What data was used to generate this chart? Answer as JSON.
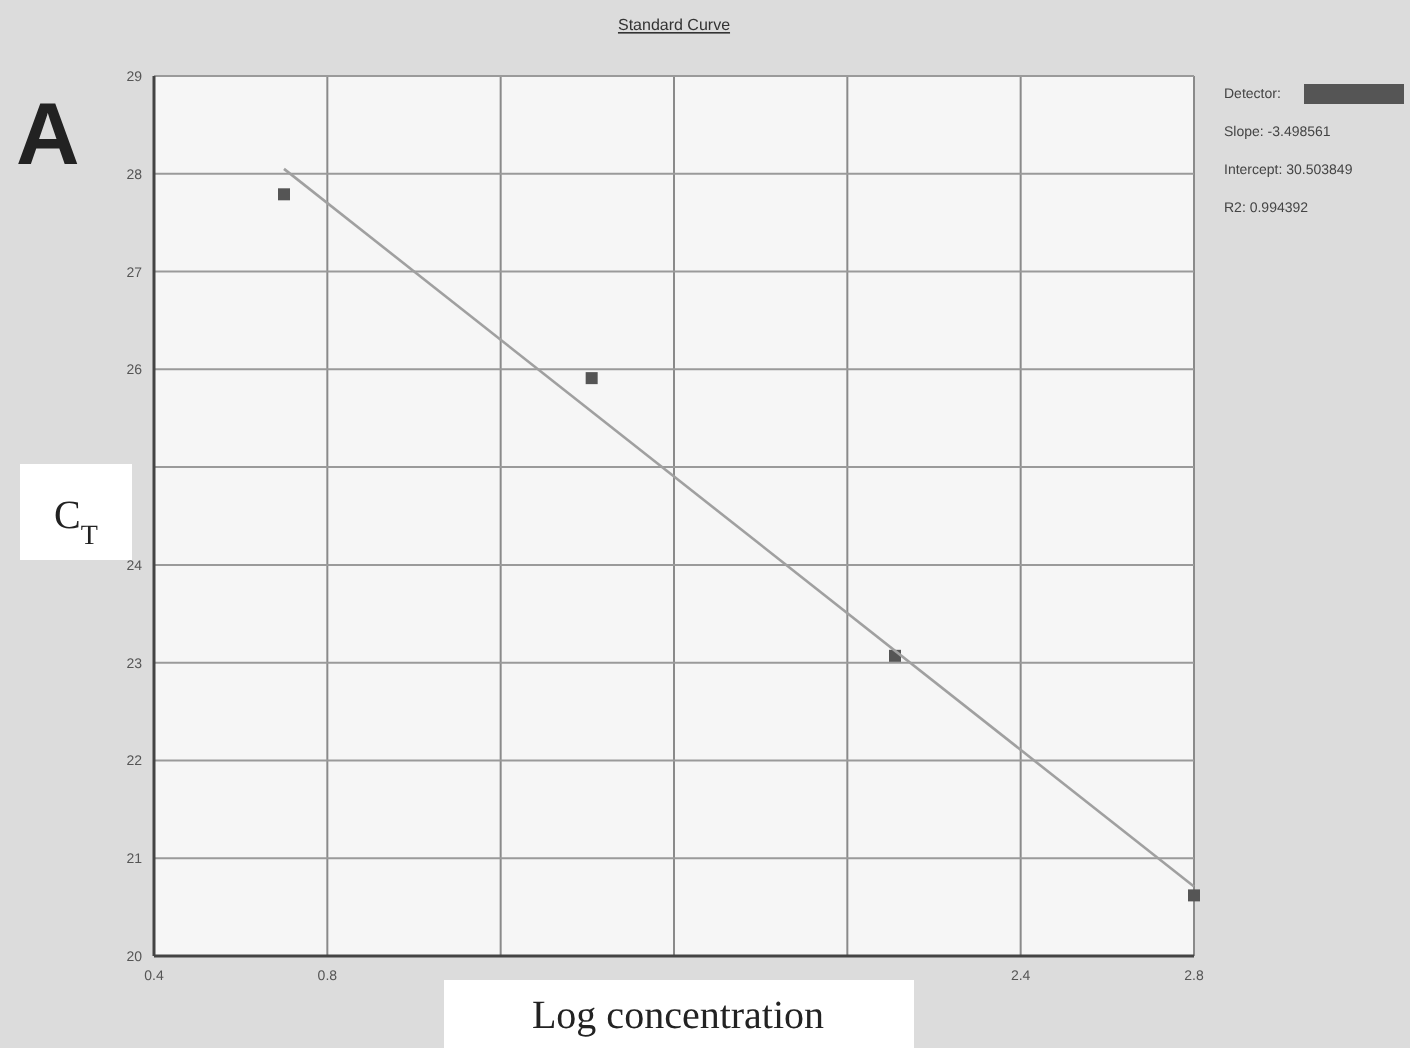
{
  "chart_data": {
    "type": "scatter",
    "title": "Standard Curve",
    "xlabel": "Log concentration",
    "ylabel": "C$_{T}$",
    "annotations": [
      "A",
      "Detector:",
      "Slope: -3.498561",
      "Intercept: 30.503849",
      "R2: 0.994392"
    ],
    "xlim": [
      0.4,
      2.8
    ],
    "xticks": [
      0.4,
      0.8,
      {
        "value": 1.2,
        "label": null
      },
      {
        "value": 1.6,
        "label": null
      },
      {
        "value": 2.0,
        "label": null
      },
      2.4,
      2.8
    ],
    "ylim": [
      20,
      29
    ],
    "yticks": [
      20,
      21,
      22,
      23,
      24,
      {
        "value": 25,
        "label": null
      },
      26,
      27,
      28,
      29
    ],
    "grid": true,
    "series": [
      {
        "color": "#555555",
        "marker": "square",
        "x": [
          0.7,
          1.41,
          2.11,
          2.8
        ],
        "values": [
          27.79,
          25.91,
          23.07,
          20.62
        ]
      },
      {
        "type": "line",
        "color": "#a0a0a0",
        "marker": "none",
        "line_style": "solid",
        "x": [
          0.7,
          2.8
        ],
        "values": [
          28.05,
          20.71
        ]
      }
    ]
  }
}
